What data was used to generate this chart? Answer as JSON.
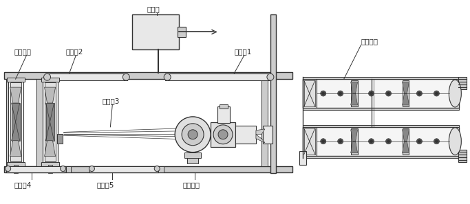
{
  "labels": {
    "feeder": "喂料机",
    "screen": "筛选设备",
    "conv2": "输送带2",
    "conv1": "输送带1",
    "conv3": "输送带3",
    "conv4": "输送带4",
    "conv5": "输送带5",
    "mill": "立磨设备",
    "ball": "球磨设备"
  },
  "font_size": 7.5,
  "lc": "#333333",
  "fc_light": "#e8e8e8",
  "fc_mid": "#cccccc",
  "fc_dark": "#999999",
  "fc_white": "#f5f5f5"
}
